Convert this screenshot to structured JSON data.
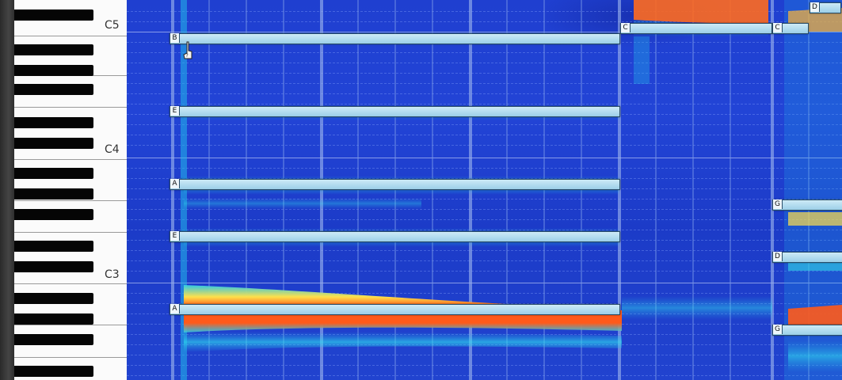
{
  "piano": {
    "octave_labels": [
      "C5",
      "C4",
      "C3"
    ]
  },
  "notes": [
    {
      "name": "B"
    },
    {
      "name": "E"
    },
    {
      "name": "A"
    },
    {
      "name": "E"
    },
    {
      "name": "A"
    },
    {
      "name": "C"
    },
    {
      "name": "C"
    },
    {
      "name": "D"
    },
    {
      "name": "G"
    },
    {
      "name": "D"
    },
    {
      "name": "G"
    }
  ],
  "colors": {
    "background": "#2244d6",
    "note_fill": "#a9d7ee",
    "energy_hot": "#ff5a1a",
    "energy_warm": "#ffe04a",
    "energy_cool": "#33d6e6"
  },
  "icons": [
    "hand-cursor-icon"
  ]
}
